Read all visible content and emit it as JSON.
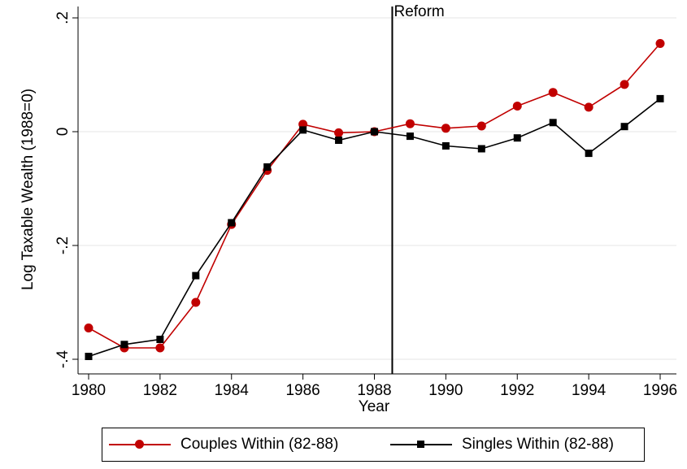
{
  "chart_data": {
    "type": "line",
    "xlabel": "Year",
    "ylabel": "Log Taxable Wealth (1988=0)",
    "xlim": [
      1980,
      1996
    ],
    "ylim": [
      -0.4,
      0.2
    ],
    "x_ticks": [
      1980,
      1982,
      1984,
      1986,
      1988,
      1990,
      1992,
      1994,
      1996
    ],
    "y_ticks": [
      {
        "value": -0.4,
        "label": "-.4"
      },
      {
        "value": -0.2,
        "label": "-.2"
      },
      {
        "value": 0,
        "label": "0"
      },
      {
        "value": 0.2,
        "label": ".2"
      }
    ],
    "grid": "horizontal",
    "x": [
      1980,
      1981,
      1982,
      1983,
      1984,
      1985,
      1986,
      1987,
      1988,
      1989,
      1990,
      1991,
      1992,
      1993,
      1994,
      1995,
      1996
    ],
    "series": [
      {
        "name": "Couples Within (82-88)",
        "color": "#c10000",
        "marker": "circle",
        "values": [
          -0.345,
          -0.38,
          -0.38,
          -0.3,
          -0.163,
          -0.068,
          0.013,
          -0.002,
          0.0,
          0.014,
          0.006,
          0.01,
          0.045,
          0.069,
          0.043,
          0.083,
          0.155
        ]
      },
      {
        "name": "Singles Within (82-88)",
        "color": "#000000",
        "marker": "square",
        "values": [
          -0.395,
          -0.374,
          -0.365,
          -0.253,
          -0.16,
          -0.062,
          0.003,
          -0.015,
          0.0,
          -0.008,
          -0.025,
          -0.03,
          -0.011,
          0.016,
          -0.038,
          0.009,
          0.058
        ]
      }
    ],
    "annotations": [
      {
        "type": "vline",
        "x": 1988.5,
        "label": "Reform"
      }
    ],
    "legend": {
      "position": "bottom",
      "columns": 2
    }
  }
}
